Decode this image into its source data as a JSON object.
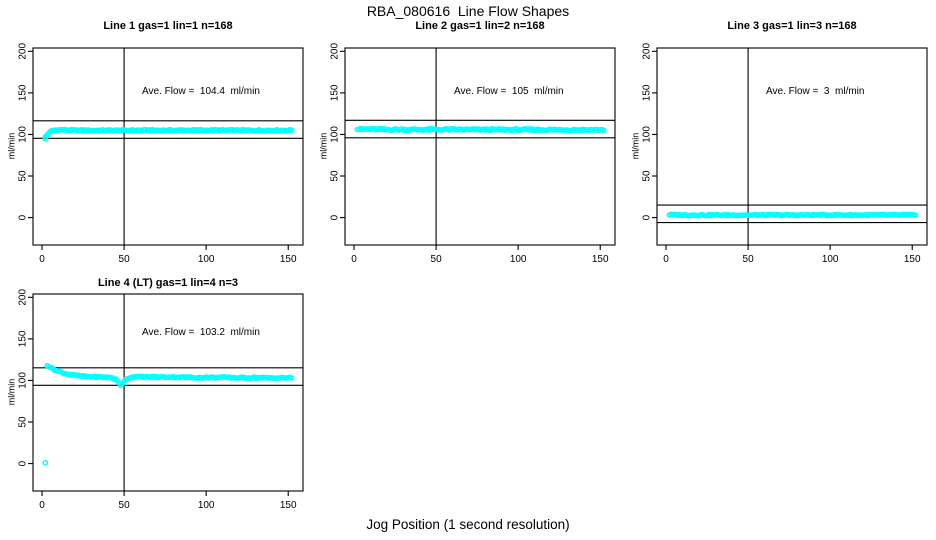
{
  "figure": {
    "main_title": "RBA_080616  Line Flow Shapes",
    "background_color": "#ffffff",
    "point_color": "#00ffff",
    "line_color": "#000000"
  },
  "chart_data": {
    "type": "scatter",
    "title": "RBA_080616  Line Flow Shapes",
    "xlabel": "Jog Position (1 second resolution)",
    "ylabel": "ml/min",
    "x_ticks": [
      0,
      50,
      100,
      150
    ],
    "y_ticks": [
      0,
      50,
      100,
      150,
      200
    ],
    "xlim": [
      -5.5,
      159
    ],
    "ylim": [
      -33,
      204
    ],
    "vline_x": 50,
    "grid": false,
    "point_style": "open-circle",
    "panels": [
      {
        "title": "Line 1 gas=1 lin=1 n=168",
        "ave_flow": 104.4,
        "annotation": "Ave. Flow =  104.4  ml/min",
        "hlines": [
          116.4,
          95.4
        ],
        "x_start": 2,
        "x_end": 152,
        "jitter": 0.8,
        "trend": [
          [
            2,
            96.8
          ],
          [
            3,
            99.5
          ],
          [
            4,
            101.5
          ],
          [
            5,
            103
          ],
          [
            6,
            104.2
          ],
          [
            8,
            105.2
          ],
          [
            11,
            105.6
          ],
          [
            15,
            105.2
          ],
          [
            20,
            104.9
          ],
          [
            30,
            104.8
          ],
          [
            50,
            104.9
          ],
          [
            80,
            105
          ],
          [
            110,
            105
          ],
          [
            130,
            104.9
          ],
          [
            152,
            105
          ]
        ],
        "outliers": [
          [
            2,
            94.5
          ]
        ]
      },
      {
        "title": "Line 2 gas=1 lin=2 n=168",
        "ave_flow": 105,
        "annotation": "Ave. Flow =  105  ml/min",
        "hlines": [
          117,
          96
        ],
        "x_start": 2,
        "x_end": 152,
        "jitter": 1.1,
        "trend": [
          [
            2,
            106.2
          ],
          [
            6,
            106.4
          ],
          [
            12,
            106.2
          ],
          [
            20,
            105.9
          ],
          [
            35,
            105.8
          ],
          [
            60,
            105.9
          ],
          [
            90,
            105.7
          ],
          [
            120,
            105.6
          ],
          [
            152,
            105.5
          ]
        ],
        "outliers": []
      },
      {
        "title": "Line 3 gas=1 lin=3 n=168",
        "ave_flow": 3,
        "annotation": "Ave. Flow =  3  ml/min",
        "hlines": [
          15,
          -6
        ],
        "x_start": 2,
        "x_end": 152,
        "jitter": 0.7,
        "trend": [
          [
            2,
            3.4
          ],
          [
            8,
            3.1
          ],
          [
            20,
            3
          ],
          [
            60,
            3
          ],
          [
            100,
            3.1
          ],
          [
            152,
            3
          ]
        ],
        "outliers": []
      },
      {
        "title": "Line 4 (LT) gas=1 lin=4 n=3",
        "ave_flow": 103.2,
        "annotation": "Ave. Flow =  103.2  ml/min",
        "hlines": [
          115.2,
          94.2
        ],
        "x_start": 3,
        "x_end": 152,
        "jitter": 0.8,
        "trend": [
          [
            3,
            118.5
          ],
          [
            4,
            117
          ],
          [
            5,
            115.8
          ],
          [
            6,
            114.5
          ],
          [
            8,
            112.5
          ],
          [
            10,
            111
          ],
          [
            13,
            109
          ],
          [
            16,
            107.5
          ],
          [
            20,
            106
          ],
          [
            25,
            105
          ],
          [
            30,
            104.4
          ],
          [
            36,
            104
          ],
          [
            42,
            103.4
          ],
          [
            45,
            101
          ],
          [
            46,
            99
          ],
          [
            47,
            96.5
          ],
          [
            48,
            94.3
          ],
          [
            49,
            96.5
          ],
          [
            50,
            99.5
          ],
          [
            52,
            102.5
          ],
          [
            55,
            104
          ],
          [
            60,
            104.4
          ],
          [
            68,
            104
          ],
          [
            78,
            104.1
          ],
          [
            88,
            103.7
          ],
          [
            98,
            103.4
          ],
          [
            108,
            103.7
          ],
          [
            118,
            103.2
          ],
          [
            128,
            103.4
          ],
          [
            138,
            103
          ],
          [
            152,
            103.2
          ]
        ],
        "outliers": [
          [
            2,
            1
          ]
        ]
      }
    ]
  }
}
